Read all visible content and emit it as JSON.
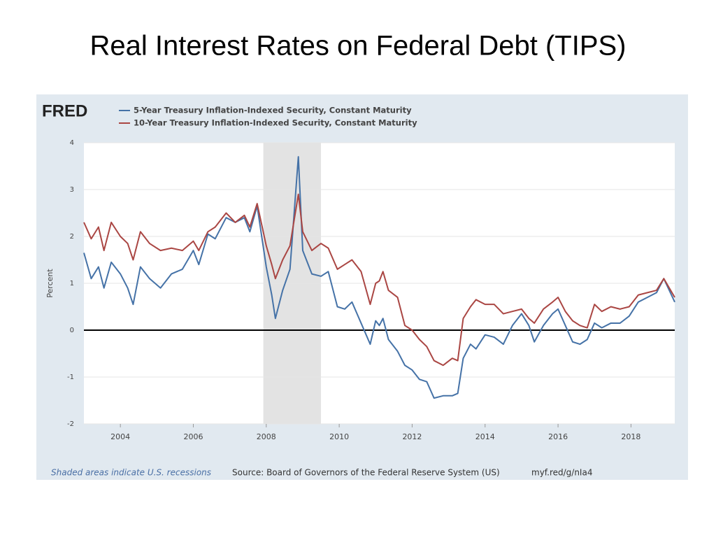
{
  "chart_data": {
    "type": "line",
    "title": "Real Interest Rates on Federal Debt (TIPS)",
    "logo": "FRED",
    "y_label": "Percent",
    "recession_note": "Shaded areas indicate U.S. recessions",
    "source": "Source: Board of Governors of the Federal Reserve System (US)",
    "url": "myf.red/g/nIa4",
    "recession": [
      2007.92,
      2009.5
    ],
    "x": [
      2003.0,
      2003.2,
      2003.4,
      2003.55,
      2003.75,
      2004.0,
      2004.2,
      2004.35,
      2004.55,
      2004.8,
      2005.1,
      2005.4,
      2005.7,
      2006.0,
      2006.15,
      2006.4,
      2006.6,
      2006.9,
      2007.15,
      2007.4,
      2007.55,
      2007.75,
      2008.0,
      2008.15,
      2008.25,
      2008.45,
      2008.65,
      2008.88,
      2009.0,
      2009.25,
      2009.5,
      2009.7,
      2009.95,
      2010.15,
      2010.35,
      2010.6,
      2010.85,
      2011.0,
      2011.1,
      2011.2,
      2011.35,
      2011.6,
      2011.8,
      2012.0,
      2012.2,
      2012.4,
      2012.6,
      2012.85,
      2013.1,
      2013.25,
      2013.4,
      2013.6,
      2013.75,
      2014.0,
      2014.25,
      2014.5,
      2014.75,
      2015.0,
      2015.2,
      2015.35,
      2015.6,
      2015.85,
      2016.0,
      2016.2,
      2016.4,
      2016.6,
      2016.8,
      2017.0,
      2017.2,
      2017.45,
      2017.7,
      2017.95,
      2018.2,
      2018.45,
      2018.7,
      2018.9,
      2019.2
    ],
    "series": [
      {
        "name": "5-Year Treasury Inflation-Indexed Security, Constant Maturity",
        "color": "#4572a7",
        "values": [
          1.65,
          1.1,
          1.35,
          0.9,
          1.45,
          1.2,
          0.9,
          0.55,
          1.35,
          1.1,
          0.9,
          1.2,
          1.3,
          1.7,
          1.4,
          2.05,
          1.95,
          2.4,
          2.3,
          2.4,
          2.1,
          2.65,
          1.35,
          0.75,
          0.25,
          0.85,
          1.3,
          3.7,
          1.7,
          1.2,
          1.15,
          1.25,
          0.5,
          0.45,
          0.6,
          0.15,
          -0.3,
          0.2,
          0.1,
          0.25,
          -0.2,
          -0.45,
          -0.75,
          -0.85,
          -1.05,
          -1.1,
          -1.45,
          -1.4,
          -1.4,
          -1.35,
          -0.6,
          -0.3,
          -0.4,
          -0.1,
          -0.15,
          -0.3,
          0.1,
          0.35,
          0.1,
          -0.25,
          0.1,
          0.35,
          0.45,
          0.1,
          -0.25,
          -0.3,
          -0.2,
          0.15,
          0.05,
          0.15,
          0.15,
          0.3,
          0.6,
          0.7,
          0.8,
          1.1,
          0.6
        ]
      },
      {
        "name": "10-Year Treasury Inflation-Indexed Security, Constant Maturity",
        "color": "#aa4643",
        "values": [
          2.3,
          1.95,
          2.2,
          1.7,
          2.3,
          2.0,
          1.85,
          1.5,
          2.1,
          1.85,
          1.7,
          1.75,
          1.7,
          1.9,
          1.7,
          2.1,
          2.2,
          2.5,
          2.3,
          2.45,
          2.2,
          2.7,
          1.8,
          1.4,
          1.1,
          1.5,
          1.8,
          2.9,
          2.1,
          1.7,
          1.85,
          1.75,
          1.3,
          1.4,
          1.5,
          1.25,
          0.55,
          1.0,
          1.05,
          1.25,
          0.85,
          0.7,
          0.1,
          0.0,
          -0.2,
          -0.35,
          -0.65,
          -0.75,
          -0.6,
          -0.65,
          0.25,
          0.5,
          0.65,
          0.55,
          0.55,
          0.35,
          0.4,
          0.45,
          0.25,
          0.15,
          0.45,
          0.6,
          0.7,
          0.4,
          0.2,
          0.1,
          0.05,
          0.55,
          0.4,
          0.5,
          0.45,
          0.5,
          0.75,
          0.8,
          0.85,
          1.1,
          0.7
        ]
      }
    ],
    "xlim": [
      2003.0,
      2019.2
    ],
    "xticks": [
      2004,
      2006,
      2008,
      2010,
      2012,
      2014,
      2016,
      2018
    ],
    "ylim": [
      -2,
      4
    ],
    "yticks": [
      -2,
      -1,
      0,
      1,
      2,
      3,
      4
    ],
    "grid": true
  }
}
